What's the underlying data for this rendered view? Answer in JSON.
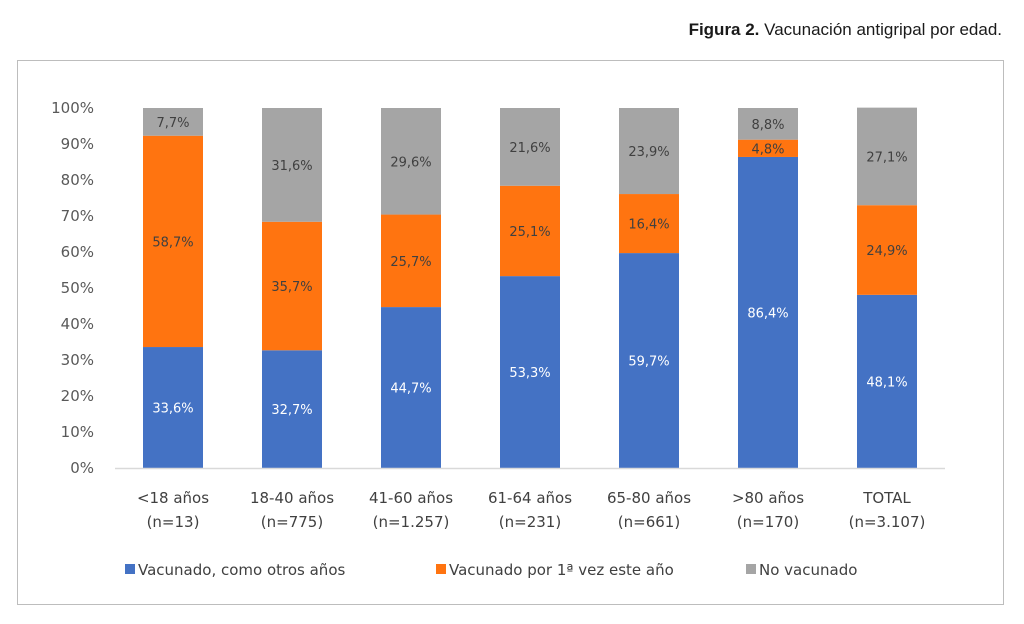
{
  "caption": {
    "bold": "Figura 2.",
    "text": " Vacunación antigripal por edad."
  },
  "chart_data": {
    "type": "bar",
    "stacked": true,
    "title": "Figura 2. Vacunación antigripal por edad.",
    "xlabel": "",
    "ylabel": "",
    "ylim": [
      0,
      100
    ],
    "yticks": [
      "0%",
      "10%",
      "20%",
      "30%",
      "40%",
      "50%",
      "60%",
      "70%",
      "80%",
      "90%",
      "100%"
    ],
    "grid": false,
    "legend_position": "bottom",
    "categories": [
      [
        "<18 años",
        "(n=13)"
      ],
      [
        "18-40 años",
        "(n=775)"
      ],
      [
        "41-60 años",
        "(n=1.257)"
      ],
      [
        "61-64 años",
        "(n=231)"
      ],
      [
        "65-80 años",
        "(n=661)"
      ],
      [
        ">80 años",
        "(n=170)"
      ],
      [
        "TOTAL",
        "(n=3.107)"
      ]
    ],
    "series": [
      {
        "name": "Vacunado, como otros años",
        "color": "#4472c4",
        "label_color": "#ffffff",
        "values": [
          33.6,
          32.7,
          44.7,
          53.3,
          59.7,
          86.4,
          48.1
        ],
        "labels": [
          "33,6%",
          "32,7%",
          "44,7%",
          "53,3%",
          "59,7%",
          "86,4%",
          "48,1%"
        ]
      },
      {
        "name": "Vacunado por 1ª vez este año",
        "color": "#ff7410",
        "label_color": "#404040",
        "values": [
          58.7,
          35.7,
          25.7,
          25.1,
          16.4,
          4.8,
          24.9
        ],
        "labels": [
          "58,7%",
          "35,7%",
          "25,7%",
          "25,1%",
          "16,4%",
          "4,8%",
          "24,9%"
        ]
      },
      {
        "name": "No vacunado",
        "color": "#a5a5a5",
        "label_color": "#404040",
        "values": [
          7.7,
          31.6,
          29.6,
          21.6,
          23.9,
          8.8,
          27.1
        ],
        "labels": [
          "7,7%",
          "31,6%",
          "29,6%",
          "21,6%",
          "23,9%",
          "8,8%",
          "27,1%"
        ]
      }
    ]
  }
}
